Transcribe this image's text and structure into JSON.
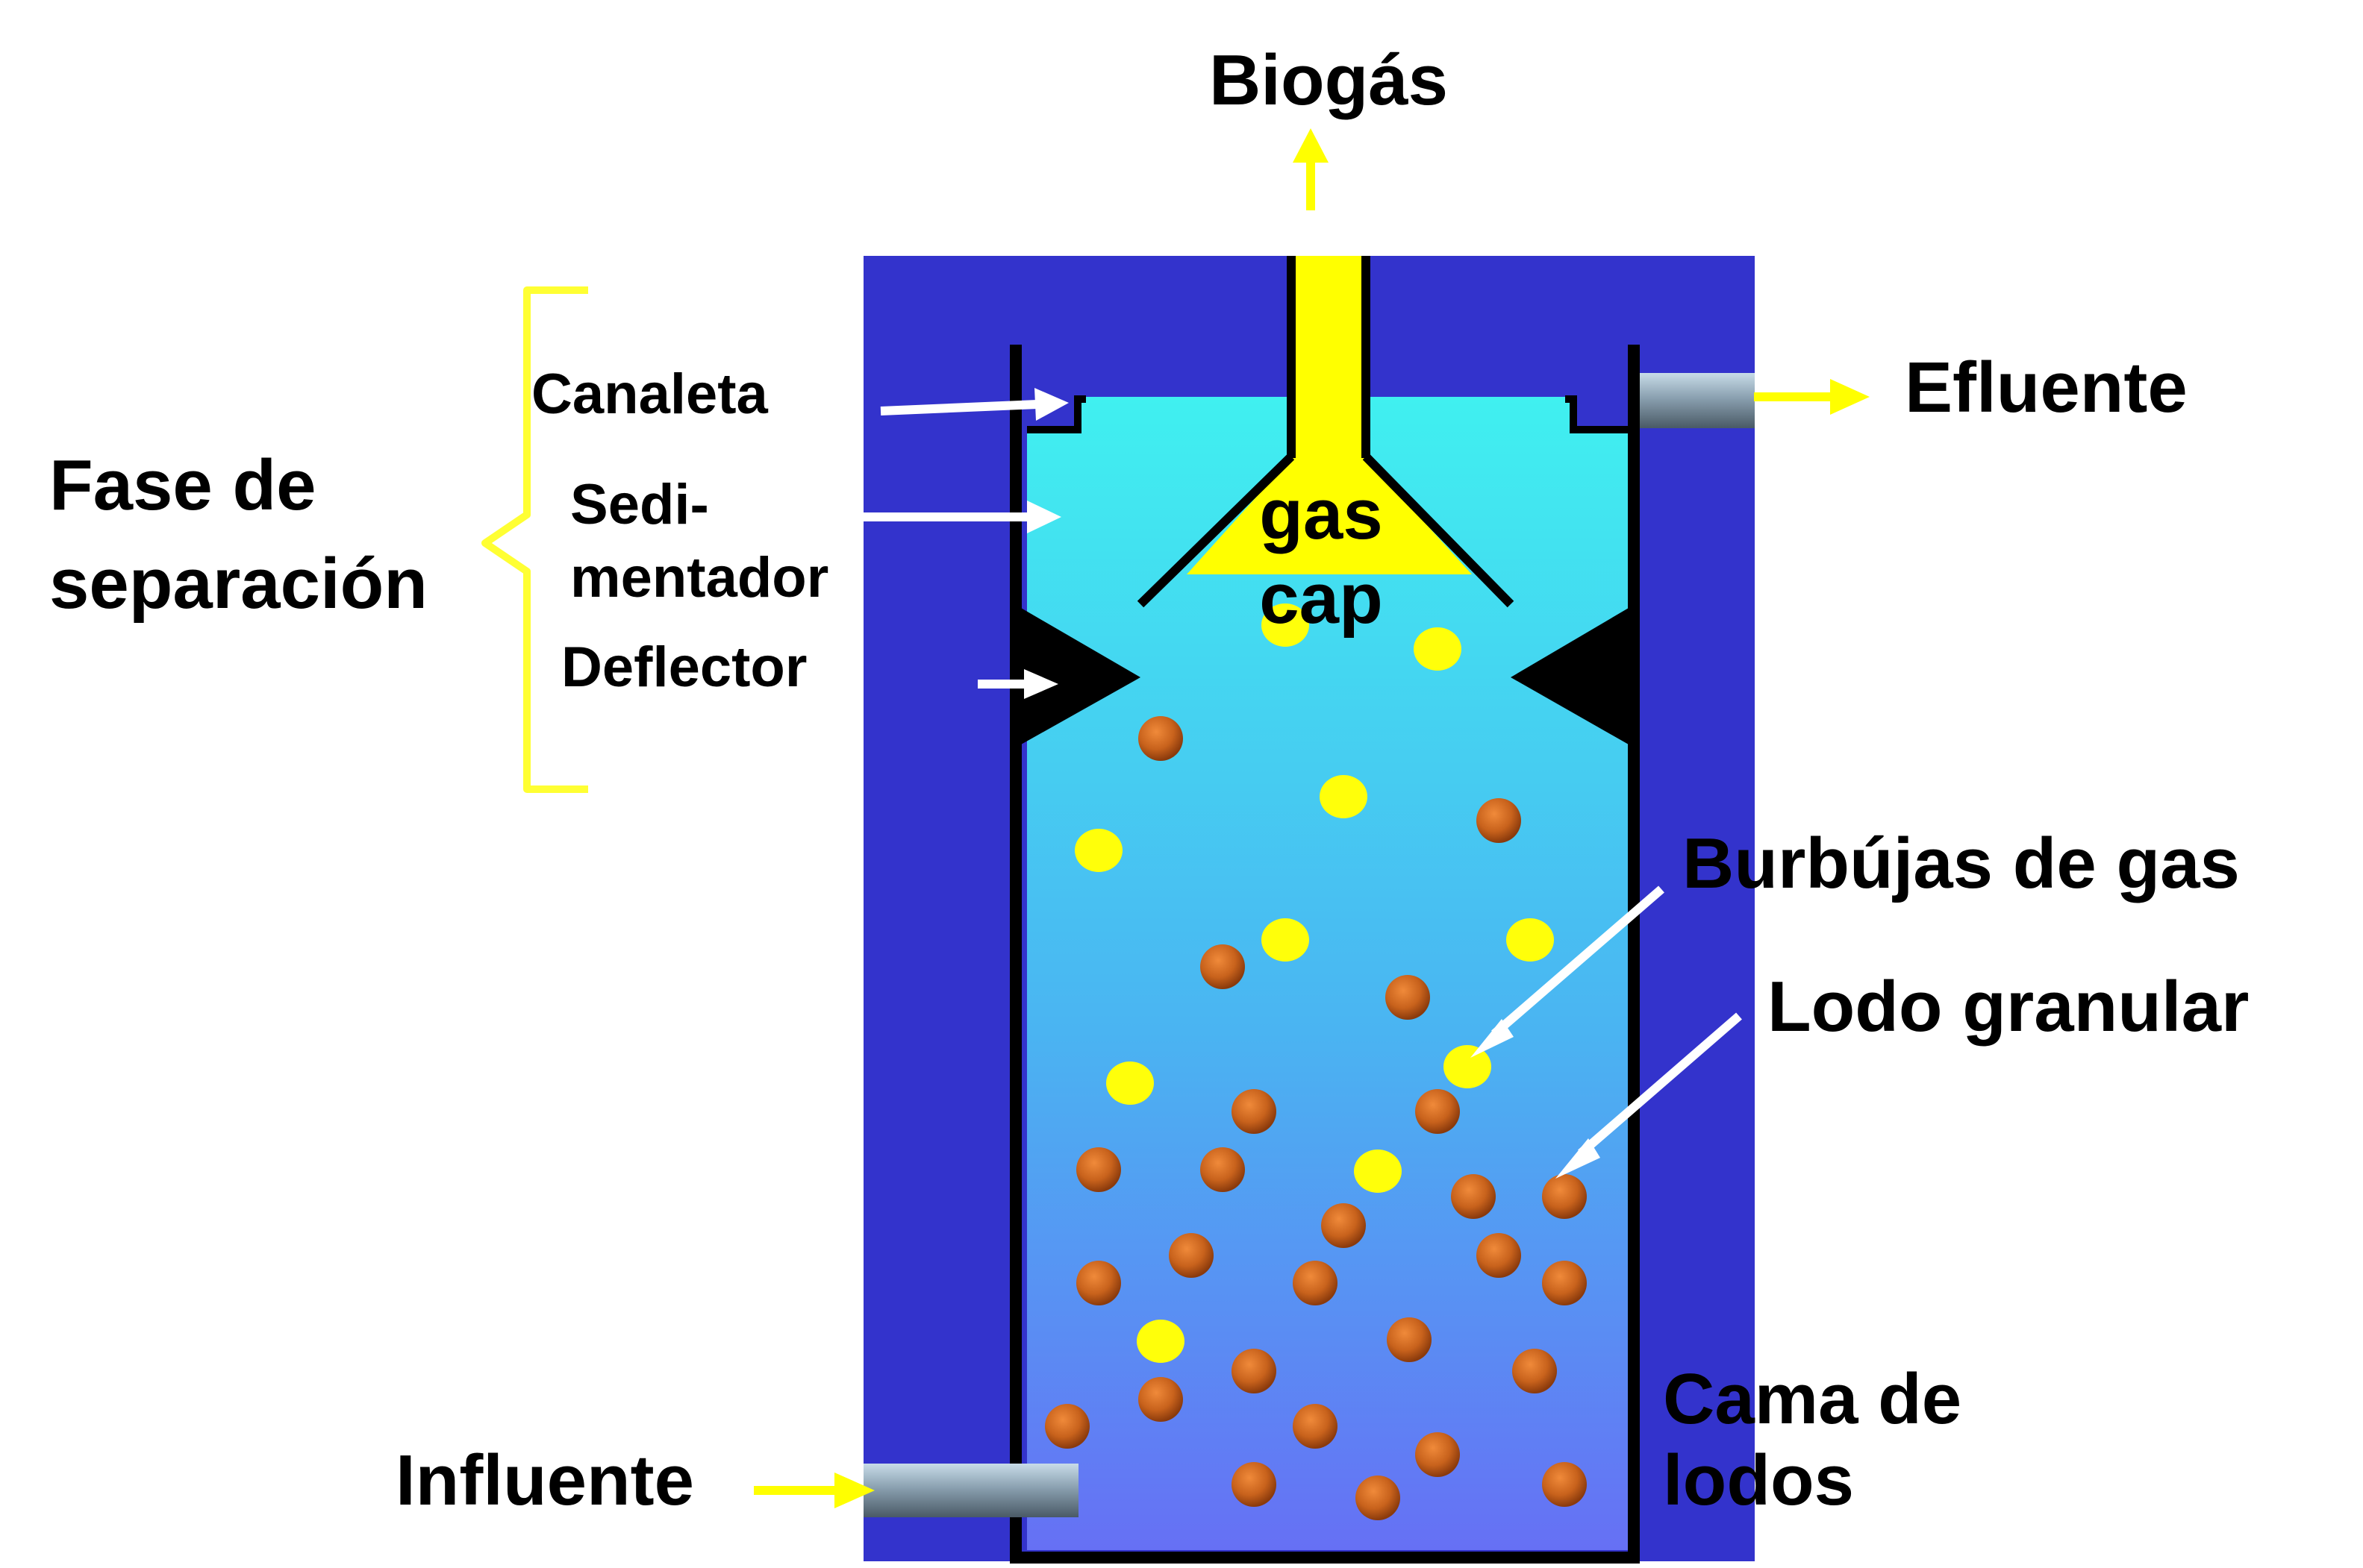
{
  "labels": {
    "biogas": "Biogás",
    "efluente": "Efluente",
    "fase_line1": "Fase de",
    "fase_line2": "separación",
    "canaleta": "Canaleta",
    "sedimentador_line1": "Sedi-",
    "sedimentador_line2": "mentador",
    "deflector": "Deflector",
    "gas_cap_line1": "gas",
    "gas_cap_line2": "cap",
    "burbujas": "Burbújas de gas",
    "lodo": "Lodo granular",
    "cama_line1": "Cama de",
    "cama_line2": "lodos",
    "influente": "Influente"
  },
  "colors": {
    "outer_block": "#3333cc",
    "liquid_top": "#40f0f0",
    "liquid_bottom": "#6670f4",
    "gas_yellow": "#ffff00",
    "bubble_yellow": "#ffff0a",
    "sludge_brown": "#c8621c",
    "wall_black": "#000000",
    "pipe_gray": "#8aa0b0",
    "bracket_yellow": "#ffff33",
    "pointer_white": "#ffffff"
  }
}
